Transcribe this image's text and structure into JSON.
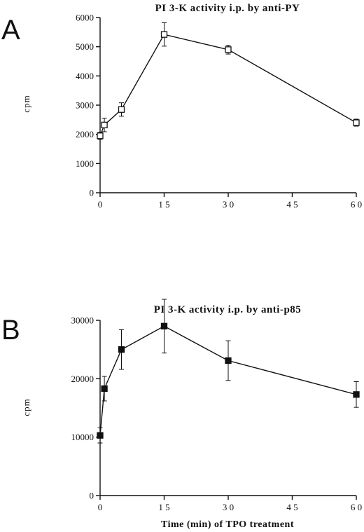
{
  "panels": [
    {
      "letter": "A"
    },
    {
      "letter": "B"
    }
  ],
  "chart_data": [
    {
      "type": "line",
      "title": "PI 3-K activity i.p. by anti-PY",
      "ylabel": "cpm",
      "xlabel": "",
      "xlim": [
        0,
        60
      ],
      "ylim": [
        0,
        6000
      ],
      "xticks": [
        0,
        15,
        30,
        45,
        60
      ],
      "xtick_labels": [
        "0",
        "1 5",
        "3 0",
        "4 5",
        "6 0"
      ],
      "yticks": [
        0,
        1000,
        2000,
        3000,
        4000,
        5000,
        6000
      ],
      "marker": "open-square",
      "x": [
        0,
        1,
        5,
        15,
        30,
        60
      ],
      "y": [
        1950,
        2320,
        2850,
        5420,
        4900,
        2400
      ],
      "error": [
        120,
        230,
        230,
        400,
        150,
        120
      ]
    },
    {
      "type": "line",
      "title": "PI 3-K activity i.p. by anti-p85",
      "ylabel": "cpm",
      "xlabel": "Time (min) of TPO treatment",
      "xlim": [
        0,
        60
      ],
      "ylim": [
        0,
        30000
      ],
      "xticks": [
        0,
        15,
        30,
        45,
        60
      ],
      "xtick_labels": [
        "0",
        "1 5",
        "3 0",
        "4 5",
        "6 0"
      ],
      "yticks": [
        0,
        10000,
        20000,
        30000
      ],
      "marker": "filled-square",
      "x": [
        0,
        1,
        5,
        15,
        30,
        60
      ],
      "y": [
        10300,
        18300,
        25000,
        29000,
        23100,
        17300
      ],
      "error": [
        1300,
        2100,
        3400,
        4600,
        3400,
        2200
      ]
    }
  ]
}
